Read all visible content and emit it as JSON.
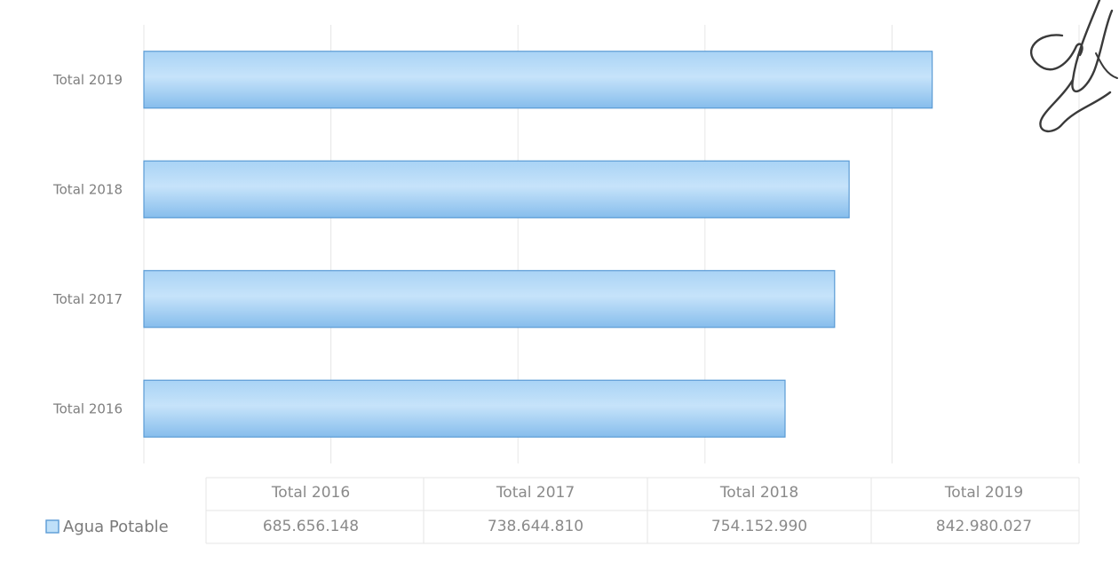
{
  "chart_data": {
    "type": "bar",
    "orientation": "horizontal",
    "categories": [
      "Total 2016",
      "Total 2017",
      "Total 2018",
      "Total 2019"
    ],
    "series": [
      {
        "name": "Agua Potable",
        "values": [
          685656148,
          738644810,
          754152990,
          842980027
        ],
        "value_labels": [
          "685.656.148",
          "738.644.810",
          "754.152.990",
          "842.980.027"
        ]
      }
    ],
    "xlim": [
      0,
      1000000000
    ],
    "grid": true,
    "legend": "bottom-left",
    "data_table": true,
    "colors": {
      "bar": "#8ec3ef",
      "bar_light": "#bfe0f9",
      "bar_edge": "#5b9bd5",
      "grid": "#e6e6e6"
    }
  }
}
